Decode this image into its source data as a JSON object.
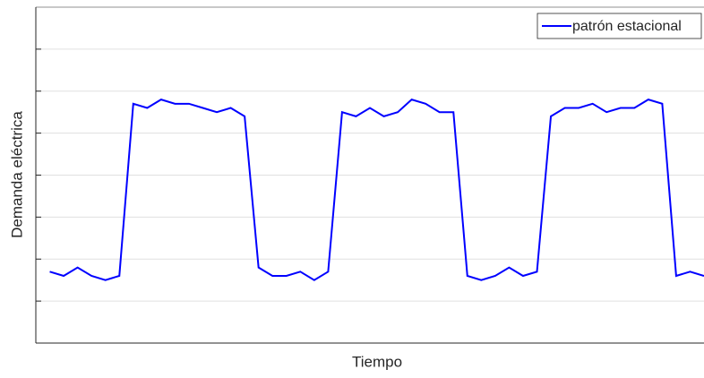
{
  "chart_data": {
    "type": "line",
    "x_label": "Tiempo",
    "y_label": "Demanda eléctrica",
    "x": [
      1,
      2,
      3,
      4,
      5,
      6,
      7,
      8,
      9,
      10,
      11,
      12,
      13,
      14,
      15,
      16,
      17,
      18,
      19,
      20,
      21,
      22,
      23,
      24,
      25,
      26,
      27,
      28,
      29,
      30,
      31,
      32,
      33,
      34,
      35,
      36,
      37,
      38,
      39,
      40,
      41,
      42,
      43,
      44,
      45,
      46,
      47,
      48
    ],
    "series": [
      {
        "name": "patrón estacional",
        "color": "#0000ff",
        "values": [
          1.7,
          1.6,
          1.8,
          1.6,
          1.5,
          1.6,
          5.7,
          5.6,
          5.8,
          5.7,
          5.7,
          5.6,
          5.5,
          5.6,
          5.4,
          1.8,
          1.6,
          1.6,
          1.7,
          1.5,
          1.7,
          5.5,
          5.4,
          5.6,
          5.4,
          5.5,
          5.8,
          5.7,
          5.5,
          5.5,
          1.6,
          1.5,
          1.6,
          1.8,
          1.6,
          1.7,
          5.4,
          5.6,
          5.6,
          5.7,
          5.5,
          5.6,
          5.6,
          5.8,
          5.7,
          1.6,
          1.7,
          1.6
        ]
      }
    ],
    "xlim": [
      0,
      48
    ],
    "ylim": [
      0,
      8
    ],
    "yticks": [
      1,
      2,
      3,
      4,
      5,
      6,
      7
    ],
    "grid": true,
    "legend": "upper right"
  }
}
